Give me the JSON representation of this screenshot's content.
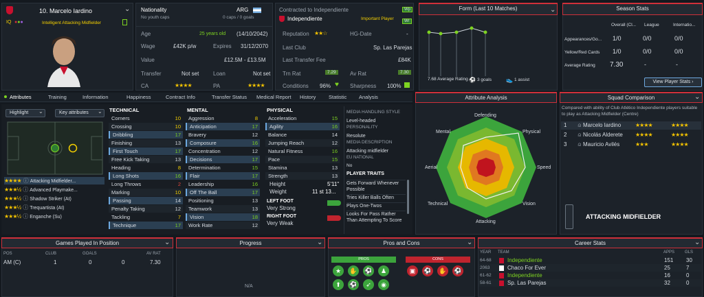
{
  "player": {
    "number_name": "10. Marcelo Iardino",
    "role": "Intelligent Attacking Midfielder",
    "iq": "IQ"
  },
  "info": {
    "nationality_label": "Nationality",
    "nationality_sub": "No youth caps",
    "nation": "ARG",
    "caps": "0 caps / 0 goals",
    "age_label": "Age",
    "age": "25 years old",
    "dob": "(14/10/2042)",
    "wage_label": "Wage",
    "wage": "£42K p/w",
    "expires_label": "Expires",
    "expires": "31/12/2070",
    "value_label": "Value",
    "value": "£12.5M - £13.5M",
    "transfer_label": "Transfer",
    "transfer": "Not set",
    "loan_label": "Loan",
    "loan": "Not set",
    "ca_label": "CA",
    "pa_label": "PA"
  },
  "club": {
    "contract_label": "Contracted to Independiente",
    "team": "Independiente",
    "status": "Important Player",
    "wp": "Wp",
    "wr": "Wr",
    "reputation_label": "Reputation",
    "hgdate_label": "HG-Date",
    "hgdate": "-",
    "last_club_label": "Last Club",
    "last_club": "Sp. Las Parejas",
    "last_fee_label": "Last Transfer Fee",
    "last_fee": "£84K",
    "trn_label": "Trn Rat",
    "trn": "7.29",
    "av_label": "Av Rat",
    "av": "7.30",
    "conditions_label": "Conditions",
    "conditions": "96%",
    "sharpness_label": "Sharpness",
    "sharpness": "100%"
  },
  "form": {
    "title": "Form (Last 10 Matches)",
    "avg": "7.68 Average Rating",
    "goals": "3 goals",
    "assists": "1 assist"
  },
  "season": {
    "title": "Season Stats",
    "col1": "Overall (Cl...",
    "col2": "League",
    "col3": "Internatio...",
    "r1": "Appearances/Go...",
    "r1a": "1/0",
    "r1b": "0/0",
    "r1c": "0/0",
    "r2": "Yellow/Red Cards",
    "r2a": "1/0",
    "r2b": "0/0",
    "r2c": "0/0",
    "r3": "Average Rating",
    "r3a": "7.30",
    "r3b": "-",
    "r3c": "-",
    "button": "View Player Stats"
  },
  "tabs": [
    "Attributes",
    "Training",
    "Information",
    "Happiness",
    "Contract Info",
    "Transfer Status",
    "Medical Report",
    "History",
    "Statistic",
    "Analysis"
  ],
  "controls": {
    "highlight": "Highlight",
    "key": "Key attributes"
  },
  "roles": [
    {
      "stars": "★★★★",
      "name": "Attacking Midfielder..."
    },
    {
      "stars": "★★★½",
      "name": "Advanced Playmake..."
    },
    {
      "stars": "★★★½",
      "name": "Shadow Striker (At)"
    },
    {
      "stars": "★★★½",
      "name": "Trequartista (At)"
    },
    {
      "stars": "★★★½",
      "name": "Enganche (Su)"
    }
  ],
  "technical": {
    "title": "TECHNICAL",
    "items": [
      [
        "Corners",
        "10"
      ],
      [
        "Crossing",
        "10"
      ],
      [
        "Dribbling",
        "17"
      ],
      [
        "Finishing",
        "13"
      ],
      [
        "First Touch",
        "17"
      ],
      [
        "Free Kick Taking",
        "13"
      ],
      [
        "Heading",
        "8"
      ],
      [
        "Long Shots",
        "16"
      ],
      [
        "Long Throws",
        "2"
      ],
      [
        "Marking",
        "10"
      ],
      [
        "Passing",
        "14"
      ],
      [
        "Penalty Taking",
        "12"
      ],
      [
        "Tackling",
        "7"
      ],
      [
        "Technique",
        "17"
      ]
    ]
  },
  "mental": {
    "title": "MENTAL",
    "items": [
      [
        "Aggression",
        "8"
      ],
      [
        "Anticipation",
        "17"
      ],
      [
        "Bravery",
        "12"
      ],
      [
        "Composure",
        "16"
      ],
      [
        "Concentration",
        "12"
      ],
      [
        "Decisions",
        "17"
      ],
      [
        "Determination",
        "15"
      ],
      [
        "Flair",
        "17"
      ],
      [
        "Leadership",
        "16"
      ],
      [
        "Off The Ball",
        "17"
      ],
      [
        "Positioning",
        "13"
      ],
      [
        "Teamwork",
        "13"
      ],
      [
        "Vision",
        "18"
      ],
      [
        "Work Rate",
        "12"
      ]
    ]
  },
  "physical": {
    "title": "PHYSICAL",
    "items": [
      [
        "Acceleration",
        "15"
      ],
      [
        "Agility",
        "16"
      ],
      [
        "Balance",
        "14"
      ],
      [
        "Jumping Reach",
        "12"
      ],
      [
        "Natural Fitness",
        "16"
      ],
      [
        "Pace",
        "15"
      ],
      [
        "Stamina",
        "13"
      ],
      [
        "Strength",
        "13"
      ]
    ],
    "height_label": "Height",
    "height": "5'11\"",
    "weight_label": "Weight",
    "weight": "11 st 13...",
    "left_foot_label": "LEFT FOOT",
    "left_foot": "Very Strong",
    "right_foot_label": "RIGHT FOOT",
    "right_foot": "Very Weak"
  },
  "media": {
    "style_label": "MEDIA HANDLING STYLE",
    "style": "Level-headed",
    "personality_label": "PERSONALITY",
    "personality": "Resolute",
    "desc_label": "MEDIA DESCRIPTION",
    "desc": "Attacking midfielder",
    "eu_label": "EU NATIONAL",
    "eu": "No",
    "traits_label": "PLAYER TRAITS",
    "traits": [
      "Gets Forward Whenever Possible",
      "Tries Killer Balls Often",
      "Plays One-Twos",
      "Looks For Pass Rather Than Attempting To Score"
    ]
  },
  "analysis": {
    "title": "Attribute Analysis",
    "labels": [
      "Defending",
      "Physical",
      "Speed",
      "Vision",
      "Attacking",
      "Technical",
      "Aerial",
      "Mental"
    ]
  },
  "squad": {
    "title": "Squad Comparison",
    "desc": "Compared with ability of Club Atlético Independiente players suitable to play as Attacking Midfielder (Centre)",
    "rows": [
      [
        "1",
        "Marcelo Iardino",
        "★★★★",
        "★★★★"
      ],
      [
        "2",
        "Nicolás Alderete",
        "★★★★",
        "★★★★"
      ],
      [
        "3",
        "Mauricio Avilés",
        "★★★",
        "★★★★"
      ]
    ],
    "position": "ATTACKING MIDFIELDER"
  },
  "games": {
    "title": "Games Played In Position",
    "cols": [
      "POS",
      "CLUB",
      "GOALS",
      "AV RAT"
    ],
    "row": [
      "AM (C)",
      "1",
      "0",
      "7.30"
    ],
    "extra": "0"
  },
  "progress": {
    "title": "Progress",
    "na": "N/A"
  },
  "pros": {
    "title": "Pros and Cons",
    "pros": "PROS",
    "cons": "CONS"
  },
  "career": {
    "title": "Career Stats",
    "cols": [
      "YEAR",
      "TEAM",
      "APPS",
      "GLS"
    ],
    "rows": [
      [
        "64-68",
        "Independiente",
        "151",
        "30"
      ],
      [
        "2063",
        "Chaco For Ever",
        "25",
        "7"
      ],
      [
        "61-62",
        "Independiente",
        "16",
        "0"
      ],
      [
        "58-61",
        "Sp. Las Parejas",
        "32",
        "0"
      ]
    ]
  },
  "colors": {
    "accent": "#d0303a",
    "green": "#7ed321",
    "gold": "#f5c400",
    "highlight": "#2b3f52"
  }
}
